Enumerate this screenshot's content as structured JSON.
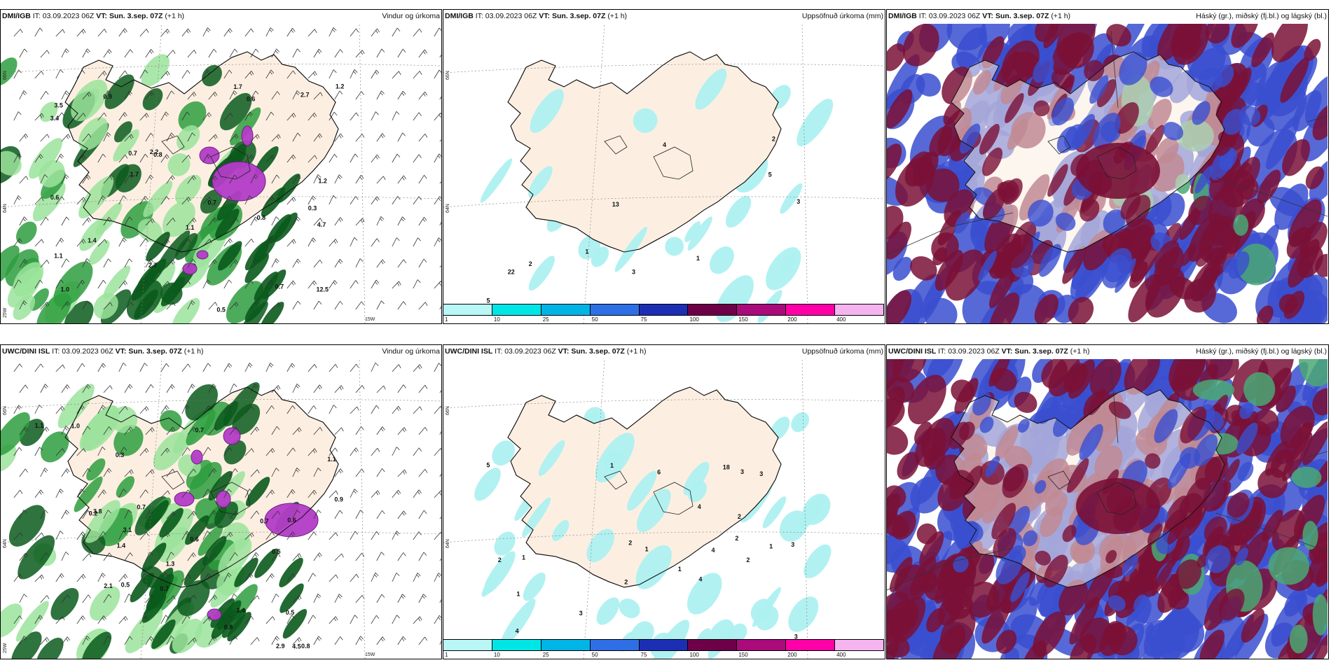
{
  "panels": [
    {
      "src": "DMI/IGB",
      "it_label": "IT:",
      "it": "03.09.2023 06Z",
      "vt_label": "VT:",
      "vt": "Sun. 3.sep. 07Z",
      "lead": "(+1 h)",
      "desc": "Vindur og úrkoma",
      "labels": [
        "0.8",
        "0.3",
        "1.0",
        "0.9",
        "0.8",
        "0.7",
        "1.1",
        "0.6",
        "0.7",
        "0.5",
        "3.4",
        "0.6",
        "3.5",
        "12.5",
        "2.7",
        "1.2",
        "1.1",
        "0.7",
        "2.2",
        "1.4",
        "1.2",
        "2.7",
        "1.7",
        "4.7",
        "1.7"
      ]
    },
    {
      "src": "DMI/IGB",
      "it_label": "IT:",
      "it": "03.09.2023 06Z",
      "vt_label": "VT:",
      "vt": "Sun. 3.sep. 07Z",
      "lead": "(+1 h)",
      "desc": "Uppsöfnuð úrkoma (mm)",
      "labels": [
        "3",
        "4",
        "3",
        "1",
        "1",
        "5",
        "2",
        "13",
        "22",
        "5",
        "2"
      ]
    },
    {
      "src": "DMI/IGB",
      "it_label": "IT:",
      "it": "03.09.2023 06Z",
      "vt_label": "VT:",
      "vt": "Sun. 3.sep. 07Z",
      "lead": "(+1 h)",
      "desc": "Háský (gr.), miðský (fj.bl.) og lágský (bl.)",
      "labels": []
    },
    {
      "src": "UWC/DINI ISL",
      "it_label": "IT:",
      "it": "03.09.2023 06Z",
      "vt_label": "VT:",
      "vt": "Sun. 3.sep. 07Z",
      "lead": "(+1 h)",
      "desc": "Vindur og úrkoma",
      "labels": [
        "1.3",
        "0.2",
        "1.0",
        "0.5",
        "0.8",
        "0.3",
        "0.7",
        "1.4",
        "0.5",
        "0.7",
        "0.6",
        "0.7",
        "1.1",
        "2.9",
        "3.1",
        "3.4",
        "0.6",
        "0.9",
        "1.1",
        "0.7",
        "4.5",
        "3.8",
        "0.8",
        "2.1",
        "0.5"
      ]
    },
    {
      "src": "UWC/DINI ISL",
      "it_label": "IT:",
      "it": "03.09.2023 06Z",
      "vt_label": "VT:",
      "vt": "Sun. 3.sep. 07Z",
      "lead": "(+1 h)",
      "desc": "Uppsöfnuð úrkoma (mm)",
      "labels": [
        "2",
        "1",
        "2",
        "5",
        "3",
        "1",
        "2",
        "3",
        "1",
        "4",
        "3",
        "4",
        "3",
        "2",
        "2",
        "4",
        "1",
        "3",
        "4",
        "18",
        "2",
        "1",
        "6",
        "1"
      ]
    },
    {
      "src": "UWC/DINI ISL",
      "it_label": "IT:",
      "it": "03.09.2023 06Z",
      "vt_label": "VT:",
      "vt": "Sun. 3.sep. 07Z",
      "lead": "(+1 h)",
      "desc": "Háský (gr.), miðský (fj.bl.) og lágský (bl.)",
      "labels": []
    }
  ],
  "axis_labels": {
    "lat_a": "66N",
    "lat_b": "64N",
    "lon_a": "25W",
    "lon_b": "15W"
  },
  "colorbar": {
    "ticks": [
      "1",
      "10",
      "25",
      "50",
      "75",
      "100",
      "150",
      "200",
      "400"
    ],
    "colors": [
      "#b9f6f6",
      "#00e6e6",
      "#00b4e6",
      "#2f6fe6",
      "#1c2fb4",
      "#6e0048",
      "#aa0a7a",
      "#ff00a8",
      "#f5b4f0"
    ]
  },
  "colors": {
    "land": "#fcefe2",
    "precip_light": "#9be39b",
    "precip_mid": "#2e9e3e",
    "precip_heavy": "#0a5a1c",
    "precip_magenta": "#b43cc8",
    "accum": "#aef0f0",
    "cloud_high": "#4aa874",
    "cloud_mid": "#7a1036",
    "cloud_low": "#3a4fd0"
  }
}
